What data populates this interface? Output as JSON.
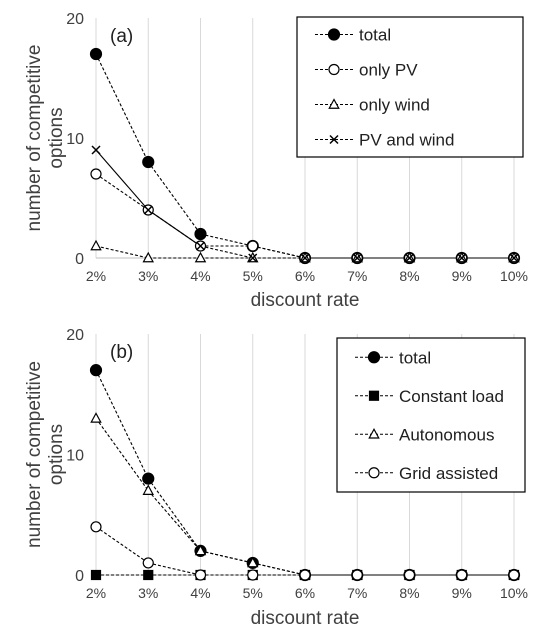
{
  "chart_data": [
    {
      "type": "line",
      "panel_label": "(a)",
      "categories": [
        "2%",
        "3%",
        "4%",
        "5%",
        "6%",
        "7%",
        "8%",
        "9%",
        "10%"
      ],
      "xlabel": "discount rate",
      "ylabel": "number of competitive options",
      "ylim": [
        0,
        20
      ],
      "yticks": [
        "0",
        "10",
        "20"
      ],
      "grid": "vertical",
      "legend_position": "top-right",
      "series": [
        {
          "name": "total",
          "marker": "filled-circle",
          "values": [
            17,
            8,
            2,
            1,
            0,
            0,
            0,
            0,
            0
          ]
        },
        {
          "name": "only PV",
          "marker": "open-circle",
          "values": [
            7,
            4,
            1,
            1,
            0,
            0,
            0,
            0,
            0
          ]
        },
        {
          "name": "only wind",
          "marker": "open-triangle",
          "values": [
            1,
            0,
            0,
            0,
            0,
            0,
            0,
            0,
            0
          ]
        },
        {
          "name": "PV and wind",
          "marker": "x",
          "values": [
            9,
            4,
            1,
            0,
            0,
            0,
            0,
            0,
            0
          ]
        }
      ]
    },
    {
      "type": "line",
      "panel_label": "(b)",
      "categories": [
        "2%",
        "3%",
        "4%",
        "5%",
        "6%",
        "7%",
        "8%",
        "9%",
        "10%"
      ],
      "xlabel": "discount rate",
      "ylabel": "number of competitive options",
      "ylim": [
        0,
        20
      ],
      "yticks": [
        "0",
        "10",
        "20"
      ],
      "grid": "vertical",
      "legend_position": "top-right",
      "series": [
        {
          "name": "total",
          "marker": "filled-circle",
          "values": [
            17,
            8,
            2,
            1,
            0,
            0,
            0,
            0,
            0
          ]
        },
        {
          "name": "Constant load",
          "marker": "filled-square",
          "values": [
            0,
            0,
            0,
            0,
            0,
            0,
            0,
            0,
            0
          ]
        },
        {
          "name": "Autonomous",
          "marker": "open-triangle",
          "values": [
            13,
            7,
            2,
            1,
            0,
            0,
            0,
            0,
            0
          ]
        },
        {
          "name": "Grid assisted",
          "marker": "open-circle",
          "values": [
            4,
            1,
            0,
            0,
            0,
            0,
            0,
            0,
            0
          ]
        }
      ]
    }
  ]
}
